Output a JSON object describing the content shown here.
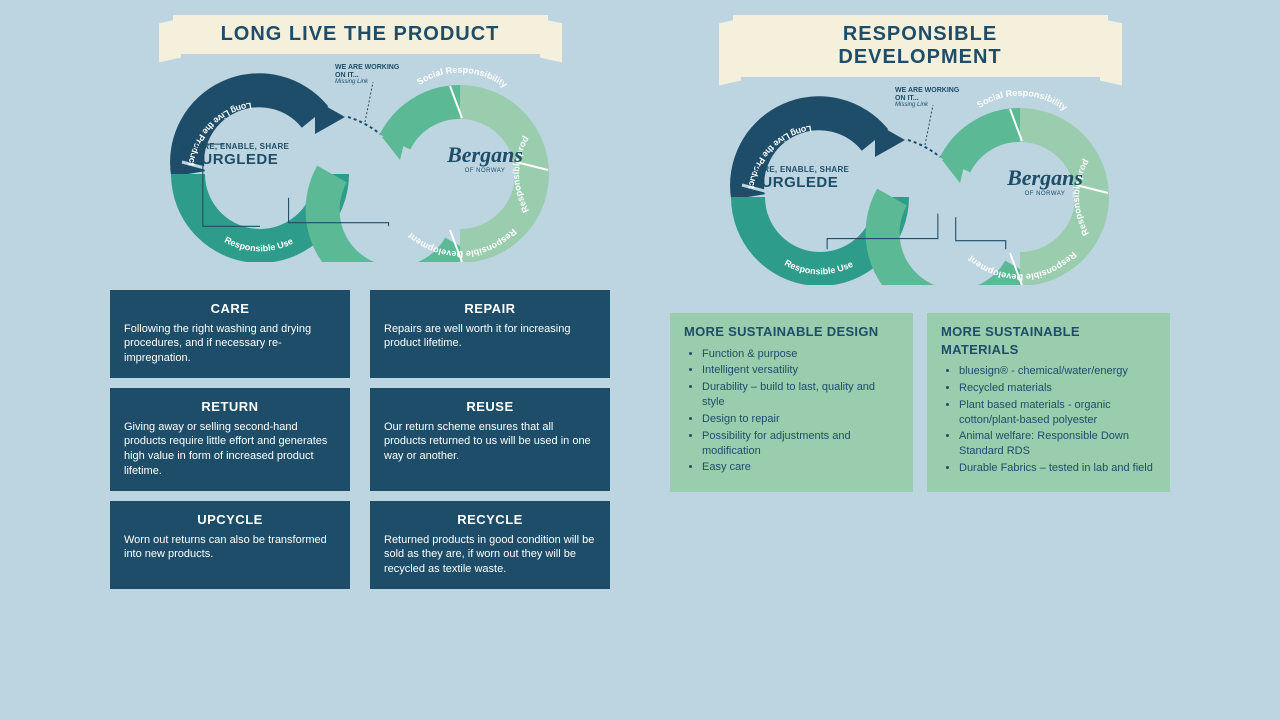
{
  "colors": {
    "dark_blue": "#1d4d68",
    "teal": "#2d9c8a",
    "mid_green": "#5cb996",
    "light_green": "#9acdae",
    "cream": "#f5f0dc",
    "page_bg": "#bdd5e1"
  },
  "missing_link": {
    "l1": "WE ARE WORKING",
    "l2": "ON IT...",
    "l3": "Missing Link"
  },
  "segments": {
    "long_live": "Long Live the Product",
    "responsible_use": "Responsible Use",
    "responsible_dev": "Responsible Development",
    "responsible_prod": "Responsible production",
    "social_resp": "Social Responsibility"
  },
  "center_left": {
    "tag": "INSPIRE, ENABLE, SHARE",
    "big": "TURGLEDE"
  },
  "center_right": {
    "brand": "Bergans",
    "sub": "OF NORWAY"
  },
  "left": {
    "title": "LONG LIVE THE PRODUCT",
    "cards": [
      {
        "h": "CARE",
        "t": "Following the right washing and drying procedures, and if necessary re-impregnation."
      },
      {
        "h": "REPAIR",
        "t": "Repairs are well worth it for increasing product lifetime."
      },
      {
        "h": "RETURN",
        "t": "Giving away or selling second-hand products require little effort and generates high value in form of increased product lifetime."
      },
      {
        "h": "REUSE",
        "t": "Our return scheme ensures that all products returned to us will be used in one way or another."
      },
      {
        "h": "UPCYCLE",
        "t": "Worn out returns can also be transformed into new products."
      },
      {
        "h": "RECYCLE",
        "t": "Returned products in good condition will be sold as they are, if worn out they will be recycled as textile waste."
      }
    ]
  },
  "right": {
    "title": "RESPONSIBLE DEVELOPMENT",
    "lists": [
      {
        "h": "MORE SUSTAINABLE DESIGN",
        "items": [
          "Function & purpose",
          "Intelligent versatility",
          "Durability – build to last, quality and style",
          "Design to repair",
          "Possibility for adjustments and modification",
          "Easy care"
        ]
      },
      {
        "h": "MORE SUSTAINABLE MATERIALS",
        "items": [
          "bluesign® - chemical/water/energy",
          "Recycled materials",
          "Plant based materials - organic cotton/plant-based polyester",
          "Animal welfare: Responsible Down Standard RDS",
          "Durable Fabrics – tested in lab and field"
        ]
      }
    ]
  }
}
